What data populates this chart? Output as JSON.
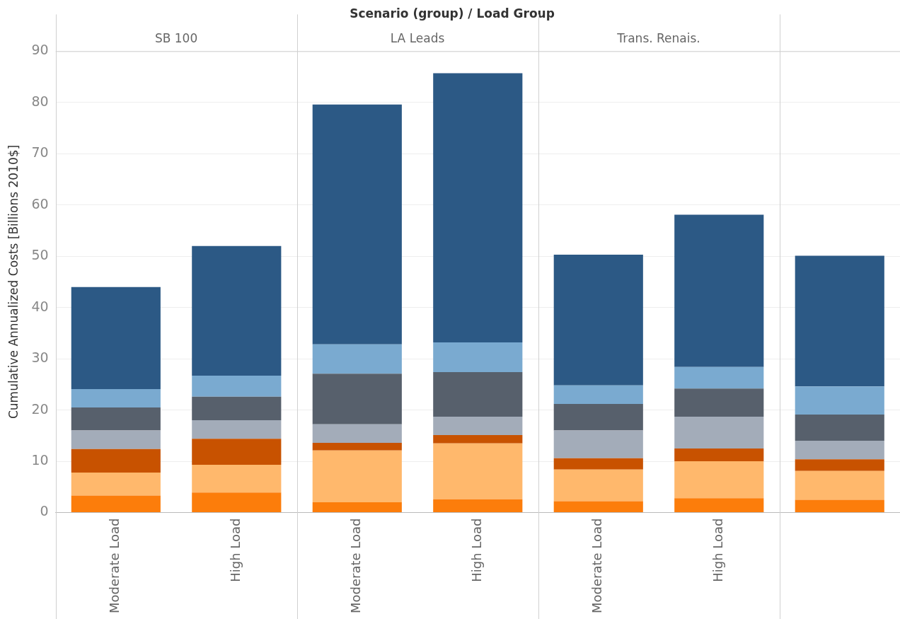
{
  "chart_data": {
    "type": "bar",
    "stacked": true,
    "title": "Scenario (group) / Load Group",
    "ylabel": "Cumulative Annualized Costs [Billions 2010$]",
    "categories": [
      "Moderate Load",
      "High Load",
      "Moderate Load",
      "High Load",
      "Moderate Load",
      "High Load",
      null
    ],
    "annotations": [
      "SB 100",
      "LA Leads",
      "Trans. Renais."
    ],
    "series": [
      {
        "color": "#fc7d0b",
        "values": [
          3.3,
          3.9,
          2.0,
          2.6,
          2.2,
          2.8,
          2.5
        ]
      },
      {
        "color": "#ffb86c",
        "values": [
          4.5,
          5.4,
          10.1,
          10.9,
          6.2,
          7.2,
          5.6
        ]
      },
      {
        "color": "#c85200",
        "values": [
          4.6,
          5.1,
          1.5,
          1.6,
          2.2,
          2.5,
          2.3
        ]
      },
      {
        "color": "#a3acb9",
        "values": [
          3.6,
          3.6,
          3.6,
          3.6,
          5.4,
          6.2,
          3.6
        ]
      },
      {
        "color": "#57606c",
        "values": [
          4.5,
          4.6,
          9.9,
          8.7,
          5.2,
          5.5,
          5.1
        ]
      },
      {
        "color": "#7aaad0",
        "values": [
          3.6,
          4.1,
          5.7,
          5.8,
          3.6,
          4.2,
          5.5
        ]
      },
      {
        "color": "#2c5985",
        "values": [
          19.9,
          25.3,
          46.8,
          52.5,
          25.5,
          29.7,
          25.5
        ]
      }
    ],
    "ylim": [
      0,
      90
    ],
    "yticks": [
      0,
      10,
      20,
      30,
      40,
      50,
      60,
      70,
      80,
      90
    ],
    "grid": "y",
    "legend": false
  }
}
